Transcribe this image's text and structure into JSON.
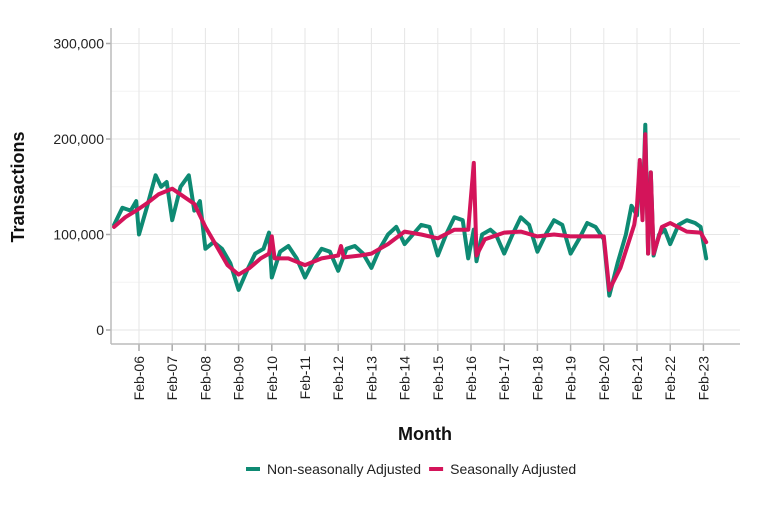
{
  "chart_data": {
    "type": "line",
    "title": "",
    "xlabel": "Month",
    "ylabel": "Transactions",
    "ylim": [
      -15000,
      315000
    ],
    "xlim": [
      "2005-04",
      "2023-12"
    ],
    "grid": true,
    "legend_placement": "bottom",
    "y_ticks": [
      0,
      100000,
      200000,
      300000
    ],
    "y_tick_labels": [
      "0",
      "100,000",
      "200,000",
      "300,000"
    ],
    "x_ticks": [
      "2006-02",
      "2007-02",
      "2008-02",
      "2009-02",
      "2010-02",
      "2011-02",
      "2012-02",
      "2013-02",
      "2014-02",
      "2015-02",
      "2016-02",
      "2017-02",
      "2018-02",
      "2019-02",
      "2020-02",
      "2021-02",
      "2022-02",
      "2023-02"
    ],
    "x_tick_labels": [
      "Feb-06",
      "Feb-07",
      "Feb-08",
      "Feb-09",
      "Feb-10",
      "Feb-11",
      "Feb-12",
      "Feb-13",
      "Feb-14",
      "Feb-15",
      "Feb-16",
      "Feb-17",
      "Feb-18",
      "Feb-19",
      "Feb-20",
      "Feb-21",
      "Feb-22",
      "Feb-23"
    ],
    "series": [
      {
        "name": "Non-seasonally Adjusted",
        "color": "#0e8a73",
        "points": [
          [
            "2005-05",
            110000
          ],
          [
            "2005-08",
            128000
          ],
          [
            "2005-11",
            125000
          ],
          [
            "2006-01",
            135000
          ],
          [
            "2006-02",
            100000
          ],
          [
            "2006-05",
            130000
          ],
          [
            "2006-08",
            162000
          ],
          [
            "2006-10",
            150000
          ],
          [
            "2006-12",
            155000
          ],
          [
            "2007-02",
            115000
          ],
          [
            "2007-05",
            150000
          ],
          [
            "2007-08",
            162000
          ],
          [
            "2007-10",
            125000
          ],
          [
            "2007-12",
            135000
          ],
          [
            "2008-02",
            85000
          ],
          [
            "2008-05",
            92000
          ],
          [
            "2008-08",
            85000
          ],
          [
            "2008-11",
            70000
          ],
          [
            "2009-02",
            42000
          ],
          [
            "2009-05",
            62000
          ],
          [
            "2009-08",
            80000
          ],
          [
            "2009-11",
            85000
          ],
          [
            "2010-01",
            102000
          ],
          [
            "2010-02",
            55000
          ],
          [
            "2010-05",
            82000
          ],
          [
            "2010-08",
            88000
          ],
          [
            "2010-11",
            75000
          ],
          [
            "2011-02",
            55000
          ],
          [
            "2011-05",
            72000
          ],
          [
            "2011-08",
            85000
          ],
          [
            "2011-11",
            82000
          ],
          [
            "2012-02",
            62000
          ],
          [
            "2012-05",
            85000
          ],
          [
            "2012-08",
            88000
          ],
          [
            "2012-11",
            80000
          ],
          [
            "2013-02",
            65000
          ],
          [
            "2013-05",
            85000
          ],
          [
            "2013-08",
            100000
          ],
          [
            "2013-11",
            108000
          ],
          [
            "2014-02",
            90000
          ],
          [
            "2014-05",
            100000
          ],
          [
            "2014-08",
            110000
          ],
          [
            "2014-11",
            108000
          ],
          [
            "2015-02",
            78000
          ],
          [
            "2015-05",
            100000
          ],
          [
            "2015-08",
            118000
          ],
          [
            "2015-11",
            115000
          ],
          [
            "2016-01",
            75000
          ],
          [
            "2016-03",
            105000
          ],
          [
            "2016-04",
            72000
          ],
          [
            "2016-06",
            100000
          ],
          [
            "2016-09",
            105000
          ],
          [
            "2016-11",
            100000
          ],
          [
            "2017-02",
            80000
          ],
          [
            "2017-05",
            100000
          ],
          [
            "2017-08",
            118000
          ],
          [
            "2017-11",
            110000
          ],
          [
            "2018-02",
            82000
          ],
          [
            "2018-05",
            100000
          ],
          [
            "2018-08",
            115000
          ],
          [
            "2018-11",
            110000
          ],
          [
            "2019-02",
            80000
          ],
          [
            "2019-05",
            95000
          ],
          [
            "2019-08",
            112000
          ],
          [
            "2019-11",
            108000
          ],
          [
            "2020-02",
            95000
          ],
          [
            "2020-04",
            36000
          ],
          [
            "2020-07",
            70000
          ],
          [
            "2020-10",
            100000
          ],
          [
            "2020-12",
            130000
          ],
          [
            "2021-02",
            120000
          ],
          [
            "2021-03",
            175000
          ],
          [
            "2021-04",
            120000
          ],
          [
            "2021-05",
            215000
          ],
          [
            "2021-06",
            80000
          ],
          [
            "2021-07",
            165000
          ],
          [
            "2021-08",
            78000
          ],
          [
            "2021-10",
            100000
          ],
          [
            "2021-12",
            105000
          ],
          [
            "2022-02",
            90000
          ],
          [
            "2022-05",
            110000
          ],
          [
            "2022-08",
            115000
          ],
          [
            "2022-11",
            112000
          ],
          [
            "2023-01",
            108000
          ],
          [
            "2023-03",
            75000
          ]
        ]
      },
      {
        "name": "Seasonally Adjusted",
        "color": "#d4145a",
        "points": [
          [
            "2005-05",
            108000
          ],
          [
            "2005-09",
            118000
          ],
          [
            "2006-01",
            125000
          ],
          [
            "2006-05",
            133000
          ],
          [
            "2006-09",
            142000
          ],
          [
            "2007-02",
            148000
          ],
          [
            "2007-06",
            140000
          ],
          [
            "2007-10",
            132000
          ],
          [
            "2008-02",
            108000
          ],
          [
            "2008-06",
            88000
          ],
          [
            "2008-10",
            68000
          ],
          [
            "2009-02",
            58000
          ],
          [
            "2009-06",
            65000
          ],
          [
            "2009-10",
            75000
          ],
          [
            "2010-01",
            80000
          ],
          [
            "2010-02",
            98000
          ],
          [
            "2010-03",
            75000
          ],
          [
            "2010-08",
            75000
          ],
          [
            "2011-02",
            68000
          ],
          [
            "2011-08",
            75000
          ],
          [
            "2012-02",
            78000
          ],
          [
            "2012-03",
            88000
          ],
          [
            "2012-04",
            76000
          ],
          [
            "2012-10",
            78000
          ],
          [
            "2013-02",
            80000
          ],
          [
            "2013-08",
            90000
          ],
          [
            "2014-02",
            103000
          ],
          [
            "2014-08",
            100000
          ],
          [
            "2015-02",
            96000
          ],
          [
            "2015-08",
            105000
          ],
          [
            "2016-01",
            105000
          ],
          [
            "2016-03",
            175000
          ],
          [
            "2016-04",
            78000
          ],
          [
            "2016-07",
            95000
          ],
          [
            "2017-02",
            102000
          ],
          [
            "2017-08",
            103000
          ],
          [
            "2018-02",
            98000
          ],
          [
            "2018-08",
            100000
          ],
          [
            "2019-02",
            98000
          ],
          [
            "2019-08",
            98000
          ],
          [
            "2020-02",
            98000
          ],
          [
            "2020-04",
            42000
          ],
          [
            "2020-08",
            65000
          ],
          [
            "2021-01",
            110000
          ],
          [
            "2021-02",
            130000
          ],
          [
            "2021-03",
            178000
          ],
          [
            "2021-04",
            115000
          ],
          [
            "2021-05",
            205000
          ],
          [
            "2021-06",
            80000
          ],
          [
            "2021-07",
            165000
          ],
          [
            "2021-08",
            80000
          ],
          [
            "2021-11",
            108000
          ],
          [
            "2022-02",
            112000
          ],
          [
            "2022-08",
            103000
          ],
          [
            "2023-01",
            102000
          ],
          [
            "2023-03",
            92000
          ]
        ]
      }
    ]
  }
}
